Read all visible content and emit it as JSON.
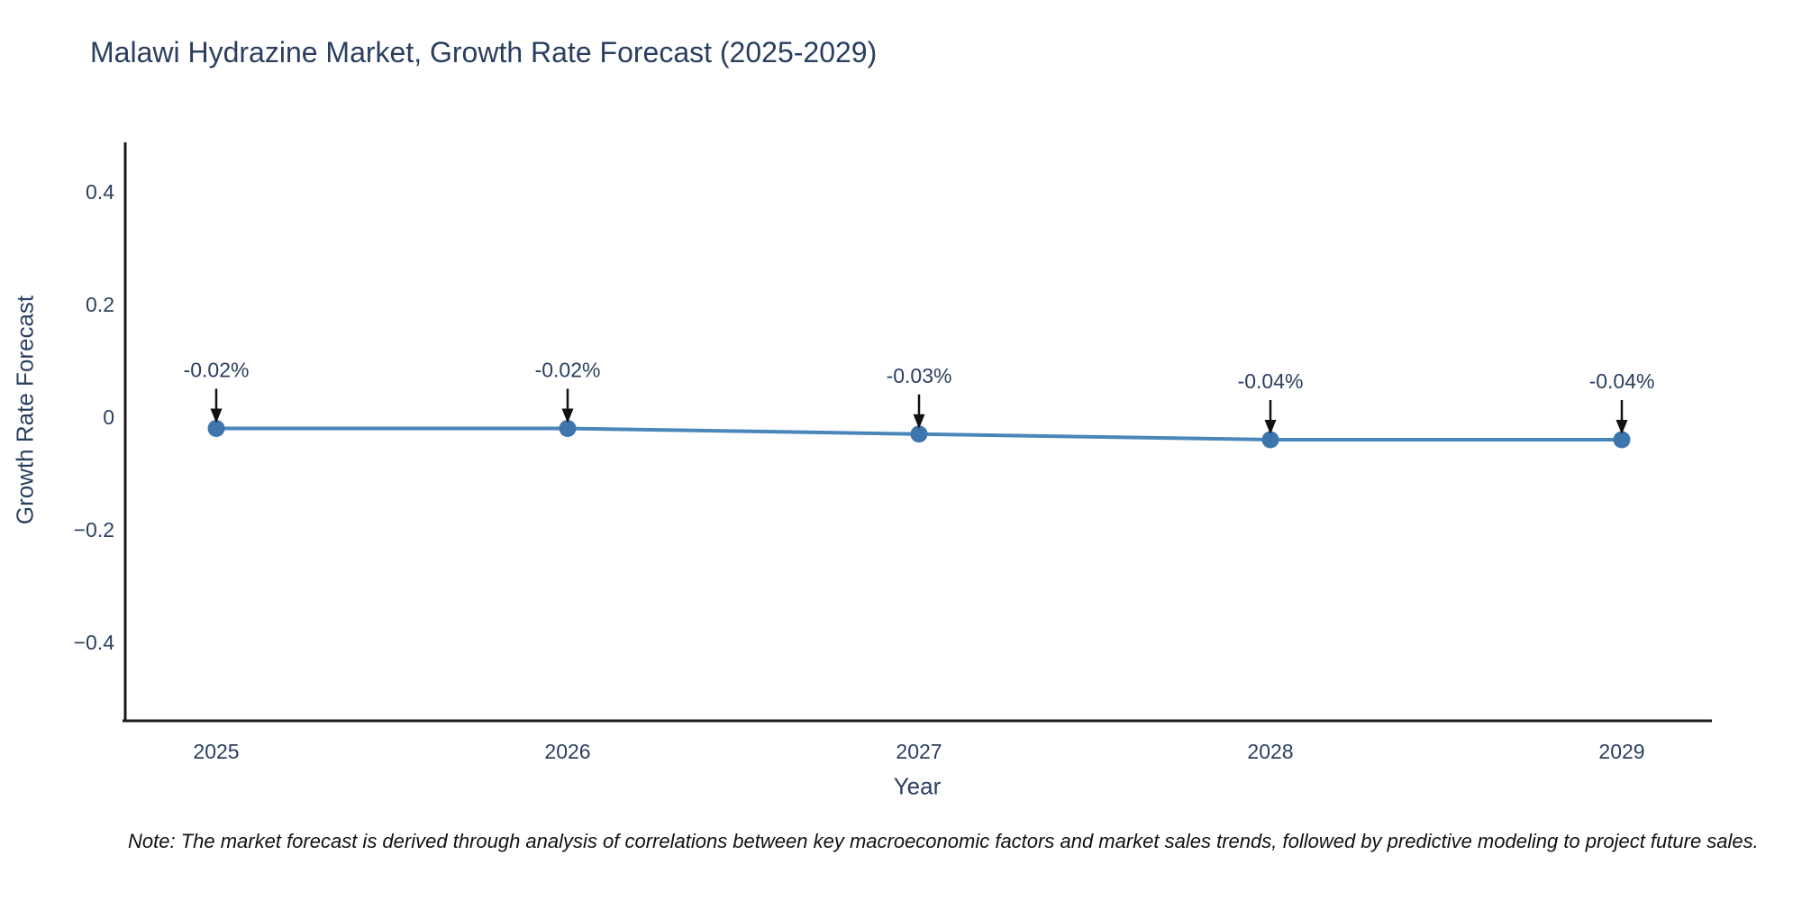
{
  "title": "Malawi Hydrazine Market, Growth Rate Forecast (2025-2029)",
  "note": "Note: The market forecast is derived through analysis of correlations between key macroeconomic factors and market sales trends, followed by predictive modeling to project future sales.",
  "chart_data": {
    "type": "line",
    "title": "Malawi Hydrazine Market, Growth Rate Forecast (2025-2029)",
    "xlabel": "Year",
    "ylabel": "Growth Rate Forecast",
    "x": [
      2025,
      2026,
      2027,
      2028,
      2029
    ],
    "x_tick_labels": [
      "2025",
      "2026",
      "2027",
      "2028",
      "2029"
    ],
    "series": [
      {
        "name": "Growth Rate Forecast",
        "values": [
          -0.02,
          -0.02,
          -0.03,
          -0.04,
          -0.04
        ]
      }
    ],
    "point_labels": [
      "-0.02%",
      "-0.02%",
      "-0.03%",
      "-0.04%",
      "-0.04%"
    ],
    "y_ticks": [
      0.4,
      0.2,
      0,
      -0.2,
      -0.4
    ],
    "y_tick_labels": [
      "0.4",
      "0.2",
      "0",
      "−0.2",
      "−0.4"
    ],
    "ylim": [
      -0.54,
      0.48
    ],
    "grid": false,
    "legend_position": "none",
    "colors": {
      "line": "#4a86ba",
      "marker": "#3d76ad",
      "axis": "#1a1a1a",
      "text": "#2a3f5f",
      "annotation_arrow": "#111111"
    }
  }
}
